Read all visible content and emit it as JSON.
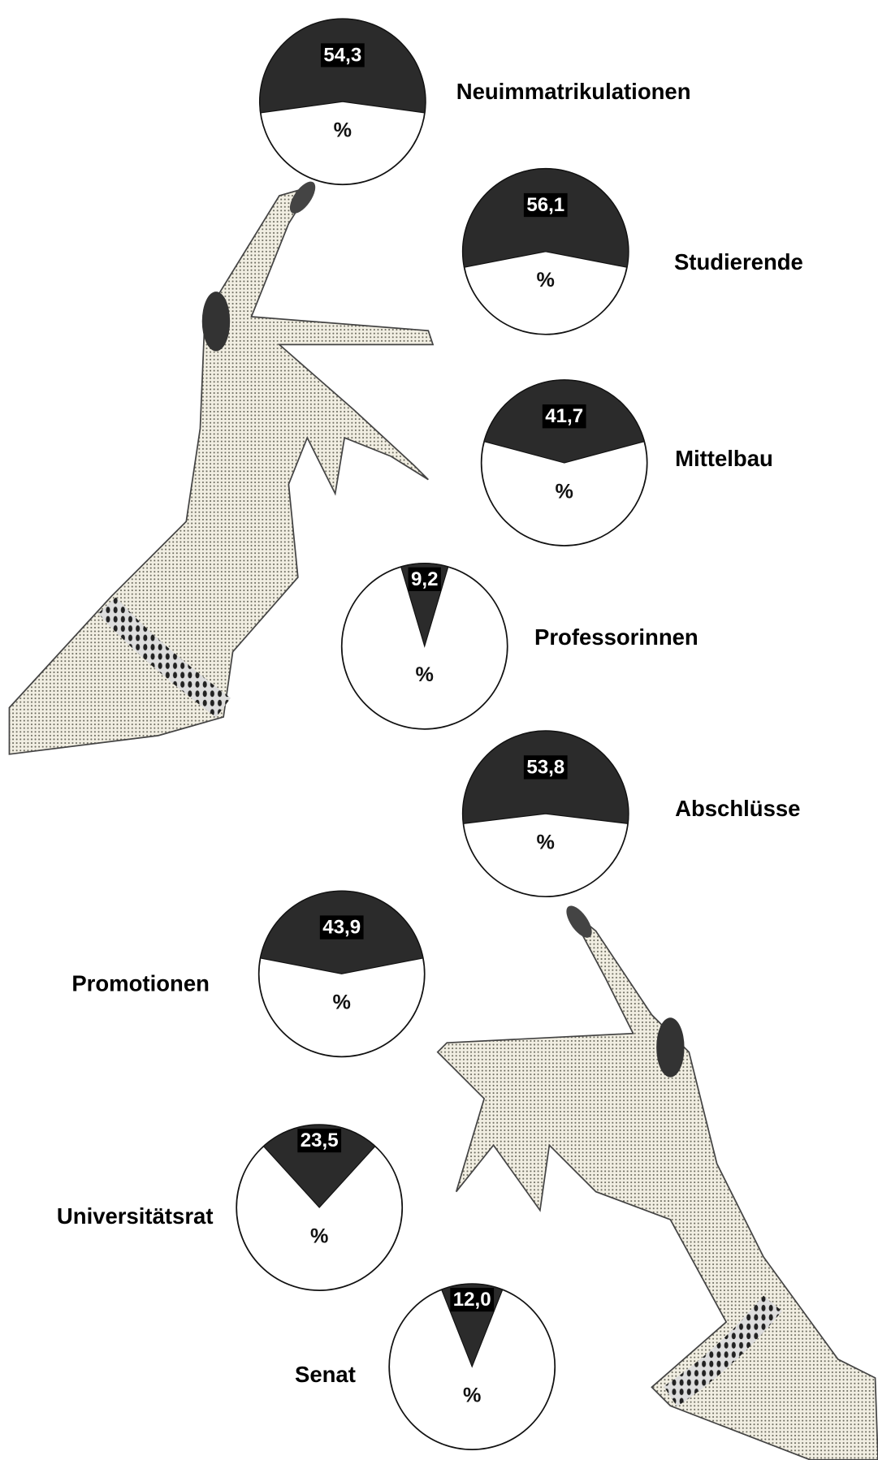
{
  "chart_data": [
    {
      "type": "pie",
      "title": "Neuimmatrikulationen",
      "values": [
        54.3
      ],
      "value_labels": [
        "54,3"
      ],
      "unit": "%"
    },
    {
      "type": "pie",
      "title": "Studierende",
      "values": [
        56.1
      ],
      "value_labels": [
        "56,1"
      ],
      "unit": "%"
    },
    {
      "type": "pie",
      "title": "Mittelbau",
      "values": [
        41.7
      ],
      "value_labels": [
        "41,7"
      ],
      "unit": "%"
    },
    {
      "type": "pie",
      "title": "Professorinnen",
      "values": [
        9.2
      ],
      "value_labels": [
        "9,2"
      ],
      "unit": "%"
    },
    {
      "type": "pie",
      "title": "Abschlüsse",
      "values": [
        53.8
      ],
      "value_labels": [
        "53,8"
      ],
      "unit": "%"
    },
    {
      "type": "pie",
      "title": "Promotionen",
      "values": [
        43.9
      ],
      "value_labels": [
        "43,9"
      ],
      "unit": "%"
    },
    {
      "type": "pie",
      "title": "Universitätsrat",
      "values": [
        23.5
      ],
      "value_labels": [
        "23,5"
      ],
      "unit": "%"
    },
    {
      "type": "pie",
      "title": "Senat",
      "values": [
        12.0
      ],
      "value_labels": [
        "12,0"
      ],
      "unit": "%"
    }
  ]
}
